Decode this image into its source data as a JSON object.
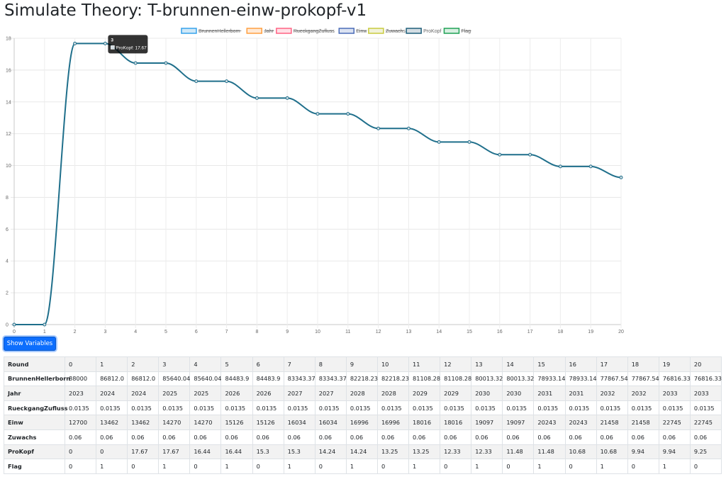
{
  "page": {
    "title": "Simulate Theory: T-brunnen-einw-prokopf-v1"
  },
  "button": {
    "label": "Show Variables"
  },
  "chart_data": {
    "type": "line",
    "title": "",
    "xlabel": "",
    "ylabel": "",
    "x": [
      0,
      1,
      2,
      3,
      4,
      5,
      6,
      7,
      8,
      9,
      10,
      11,
      12,
      13,
      14,
      15,
      16,
      17,
      18,
      19,
      20
    ],
    "xlim": [
      0,
      20
    ],
    "ylim": [
      0,
      18
    ],
    "y_ticks": [
      0,
      2,
      4,
      6,
      8,
      10,
      12,
      14,
      16,
      18
    ],
    "grid": true,
    "legend_position": "top",
    "legend": [
      {
        "name": "BrunnenHellerborn",
        "color": "#36a2eb",
        "fill": "#cfe8f8",
        "hidden": true
      },
      {
        "name": "Jahr",
        "color": "#ff9f40",
        "fill": "#ffe9d6",
        "hidden": true
      },
      {
        "name": "RueckgangZufluss",
        "color": "#ff6384",
        "fill": "#ffe0e6",
        "hidden": true
      },
      {
        "name": "Einw",
        "color": "#4b6cb7",
        "fill": "#dbe2f1",
        "hidden": true
      },
      {
        "name": "Zuwachs",
        "color": "#c9cb3f",
        "fill": "#f1f2d9",
        "hidden": true
      },
      {
        "name": "ProKopf",
        "color": "#1f5f7a",
        "fill": "#d3dde3",
        "hidden": false
      },
      {
        "name": "Flag",
        "color": "#1fa155",
        "fill": "#d7efe1",
        "hidden": true
      }
    ],
    "series": [
      {
        "name": "ProKopf",
        "color": "#1f6f8b",
        "values": [
          0,
          0,
          17.67,
          17.67,
          16.44,
          16.44,
          15.3,
          15.3,
          14.24,
          14.24,
          13.25,
          13.25,
          12.33,
          12.33,
          11.48,
          11.48,
          10.68,
          10.68,
          9.94,
          9.94,
          9.25
        ]
      }
    ],
    "tooltip": {
      "index": 3,
      "title": "3",
      "text": "ProKopf: 17.67",
      "color": "#1f5f7a"
    }
  },
  "table": {
    "rows": [
      {
        "label": "Round",
        "values": [
          "0",
          "1",
          "2",
          "3",
          "4",
          "5",
          "6",
          "7",
          "8",
          "9",
          "10",
          "11",
          "12",
          "13",
          "14",
          "15",
          "16",
          "17",
          "18",
          "19",
          "20"
        ]
      },
      {
        "label": "BrunnenHellerborn",
        "values": [
          "88000",
          "86812.0",
          "86812.0",
          "85640.04",
          "85640.04",
          "84483.9",
          "84483.9",
          "83343.37",
          "83343.37",
          "82218.23",
          "82218.23",
          "81108.28",
          "81108.28",
          "80013.32",
          "80013.32",
          "78933.14",
          "78933.14",
          "77867.54",
          "77867.54",
          "76816.33",
          "76816.33"
        ]
      },
      {
        "label": "Jahr",
        "values": [
          "2023",
          "2024",
          "2024",
          "2025",
          "2025",
          "2026",
          "2026",
          "2027",
          "2027",
          "2028",
          "2028",
          "2029",
          "2029",
          "2030",
          "2030",
          "2031",
          "2031",
          "2032",
          "2032",
          "2033",
          "2033"
        ]
      },
      {
        "label": "RueckgangZufluss",
        "values": [
          "0.0135",
          "0.0135",
          "0.0135",
          "0.0135",
          "0.0135",
          "0.0135",
          "0.0135",
          "0.0135",
          "0.0135",
          "0.0135",
          "0.0135",
          "0.0135",
          "0.0135",
          "0.0135",
          "0.0135",
          "0.0135",
          "0.0135",
          "0.0135",
          "0.0135",
          "0.0135",
          "0.0135"
        ]
      },
      {
        "label": "Einw",
        "values": [
          "12700",
          "13462",
          "13462",
          "14270",
          "14270",
          "15126",
          "15126",
          "16034",
          "16034",
          "16996",
          "16996",
          "18016",
          "18016",
          "19097",
          "19097",
          "20243",
          "20243",
          "21458",
          "21458",
          "22745",
          "22745"
        ]
      },
      {
        "label": "Zuwachs",
        "values": [
          "0.06",
          "0.06",
          "0.06",
          "0.06",
          "0.06",
          "0.06",
          "0.06",
          "0.06",
          "0.06",
          "0.06",
          "0.06",
          "0.06",
          "0.06",
          "0.06",
          "0.06",
          "0.06",
          "0.06",
          "0.06",
          "0.06",
          "0.06",
          "0.06"
        ]
      },
      {
        "label": "ProKopf",
        "values": [
          "0",
          "0",
          "17.67",
          "17.67",
          "16.44",
          "16.44",
          "15.3",
          "15.3",
          "14.24",
          "14.24",
          "13.25",
          "13.25",
          "12.33",
          "12.33",
          "11.48",
          "11.48",
          "10.68",
          "10.68",
          "9.94",
          "9.94",
          "9.25"
        ]
      },
      {
        "label": "Flag",
        "values": [
          "0",
          "1",
          "0",
          "1",
          "0",
          "1",
          "0",
          "1",
          "0",
          "1",
          "0",
          "1",
          "0",
          "1",
          "0",
          "1",
          "0",
          "1",
          "0",
          "1",
          "0"
        ]
      }
    ]
  }
}
